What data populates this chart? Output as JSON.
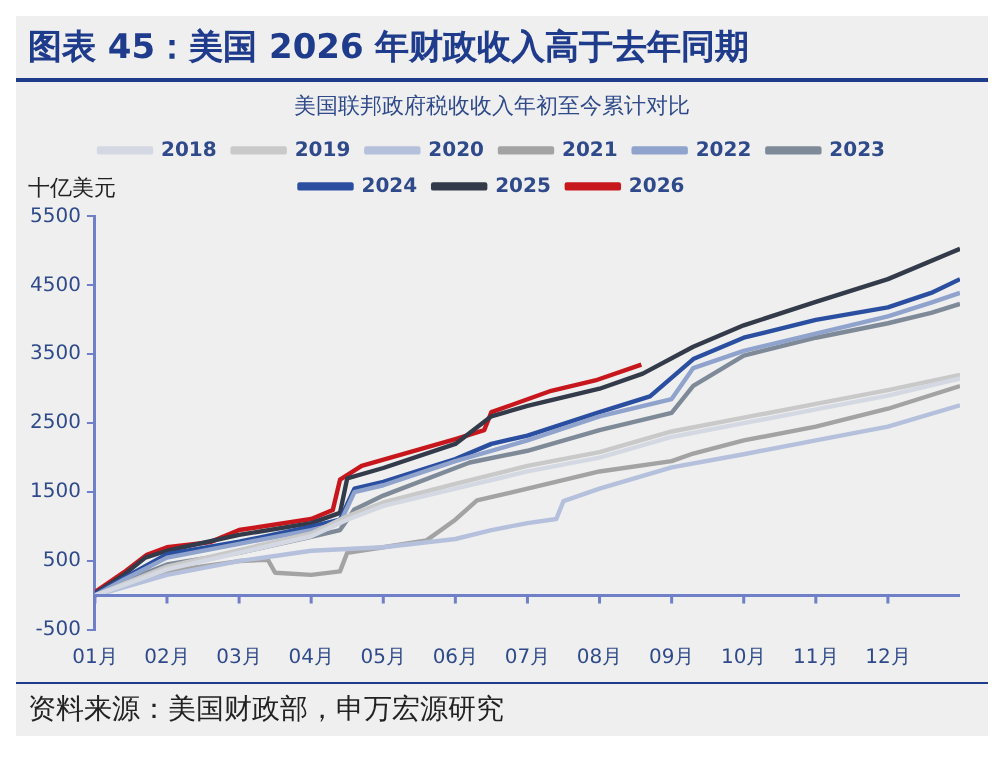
{
  "chart_data": {
    "type": "line",
    "title": "图表 45：美国 2026 年财政收入高于去年同期",
    "subtitle": "美国联邦政府税收收入年初至今累计对比",
    "ylabel": "十亿美元",
    "annotations": [
      "资料来源：美国财政部，申万宏源研究"
    ],
    "xlim": [
      1,
      13
    ],
    "xticks": [
      {
        "value": 1,
        "label": "01月"
      },
      {
        "value": 2,
        "label": "02月"
      },
      {
        "value": 3,
        "label": "03月"
      },
      {
        "value": 4,
        "label": "04月"
      },
      {
        "value": 5,
        "label": "05月"
      },
      {
        "value": 6,
        "label": "06月"
      },
      {
        "value": 7,
        "label": "07月"
      },
      {
        "value": 8,
        "label": "08月"
      },
      {
        "value": 9,
        "label": "09月"
      },
      {
        "value": 10,
        "label": "10月"
      },
      {
        "value": 11,
        "label": "11月"
      },
      {
        "value": 12,
        "label": "12月"
      }
    ],
    "ylim": [
      -500,
      5500
    ],
    "yticks": [
      -500,
      500,
      1500,
      2500,
      3500,
      4500,
      5500
    ],
    "grid": false,
    "legend": "top",
    "marker": "none",
    "line_style": "solid",
    "series": [
      {
        "name": "2018",
        "color": "#d3d8e2",
        "x": [
          1,
          2,
          3,
          4,
          4.5,
          5,
          6,
          7,
          8,
          9,
          10,
          11,
          12,
          13
        ],
        "values": [
          0,
          380,
          620,
          860,
          1100,
          1300,
          1550,
          1800,
          2000,
          2300,
          2500,
          2700,
          2900,
          3150
        ]
      },
      {
        "name": "2019",
        "color": "#c9c9c9",
        "x": [
          1,
          2,
          3,
          4,
          4.5,
          5,
          6,
          7,
          8,
          9,
          10,
          11,
          12,
          13
        ],
        "values": [
          0,
          420,
          660,
          900,
          1150,
          1350,
          1620,
          1880,
          2080,
          2380,
          2580,
          2780,
          2980,
          3200
        ]
      },
      {
        "name": "2020",
        "color": "#b4c0dc",
        "x": [
          1,
          2,
          3,
          4,
          5,
          6,
          6.5,
          7,
          7.4,
          7.5,
          8,
          9,
          10,
          11,
          12,
          13
        ],
        "values": [
          0,
          300,
          500,
          650,
          700,
          820,
          950,
          1050,
          1110,
          1370,
          1550,
          1860,
          2050,
          2250,
          2450,
          2760
        ]
      },
      {
        "name": "2021",
        "color": "#a3a3a3",
        "x": [
          1,
          2,
          3,
          3.4,
          3.5,
          4,
          4.4,
          4.5,
          5,
          5.6,
          6,
          6.3,
          7,
          8,
          9,
          9.3,
          10,
          11,
          12,
          13
        ],
        "values": [
          0,
          350,
          500,
          520,
          330,
          300,
          350,
          620,
          700,
          800,
          1100,
          1380,
          1550,
          1800,
          1950,
          2060,
          2250,
          2450,
          2710,
          3040
        ]
      },
      {
        "name": "2022",
        "color": "#8fa3cc",
        "x": [
          1,
          1.4,
          2,
          3,
          4,
          4.4,
          4.6,
          5,
          6,
          7,
          8,
          9,
          9.3,
          10,
          11,
          12,
          12.6,
          13
        ],
        "values": [
          0,
          230,
          550,
          750,
          950,
          1050,
          1500,
          1600,
          1950,
          2250,
          2600,
          2850,
          3300,
          3550,
          3800,
          4050,
          4250,
          4390
        ]
      },
      {
        "name": "2023",
        "color": "#7f8a99",
        "x": [
          1,
          1.4,
          2,
          3,
          4,
          4.4,
          4.6,
          5,
          6,
          6.2,
          7,
          8,
          9,
          9.3,
          10,
          11,
          12,
          12.6,
          13
        ],
        "values": [
          0,
          200,
          450,
          620,
          850,
          950,
          1250,
          1450,
          1850,
          1930,
          2100,
          2400,
          2650,
          3040,
          3480,
          3740,
          3950,
          4100,
          4230
        ]
      },
      {
        "name": "2024",
        "color": "#2b4fa0",
        "x": [
          1,
          1.4,
          2,
          3,
          4,
          4.4,
          4.6,
          5,
          6,
          6.5,
          7,
          8,
          8.7,
          9.3,
          10,
          11,
          12,
          12.6,
          13
        ],
        "values": [
          20,
          250,
          600,
          780,
          1000,
          1100,
          1550,
          1650,
          1980,
          2200,
          2320,
          2660,
          2890,
          3430,
          3740,
          4000,
          4180,
          4390,
          4590
        ]
      },
      {
        "name": "2025",
        "color": "#333b4a",
        "x": [
          1,
          1.4,
          1.7,
          2,
          3,
          4,
          4.4,
          4.5,
          5,
          6,
          6.5,
          7,
          8,
          8.6,
          9.3,
          10,
          11,
          12,
          13
        ],
        "values": [
          30,
          300,
          550,
          650,
          880,
          1050,
          1200,
          1700,
          1850,
          2200,
          2600,
          2750,
          3000,
          3220,
          3610,
          3920,
          4260,
          4590,
          5030
        ]
      },
      {
        "name": "2026",
        "color": "#c8161d",
        "x": [
          1,
          1.4,
          1.72,
          2,
          2.6,
          3,
          4,
          4.3,
          4.4,
          4.7,
          6,
          6.4,
          6.5,
          7.33,
          7.94,
          8.58
        ],
        "values": [
          50,
          335,
          590,
          700,
          775,
          950,
          1110,
          1240,
          1680,
          1880,
          2270,
          2400,
          2660,
          2970,
          3120,
          3350
        ]
      }
    ]
  }
}
